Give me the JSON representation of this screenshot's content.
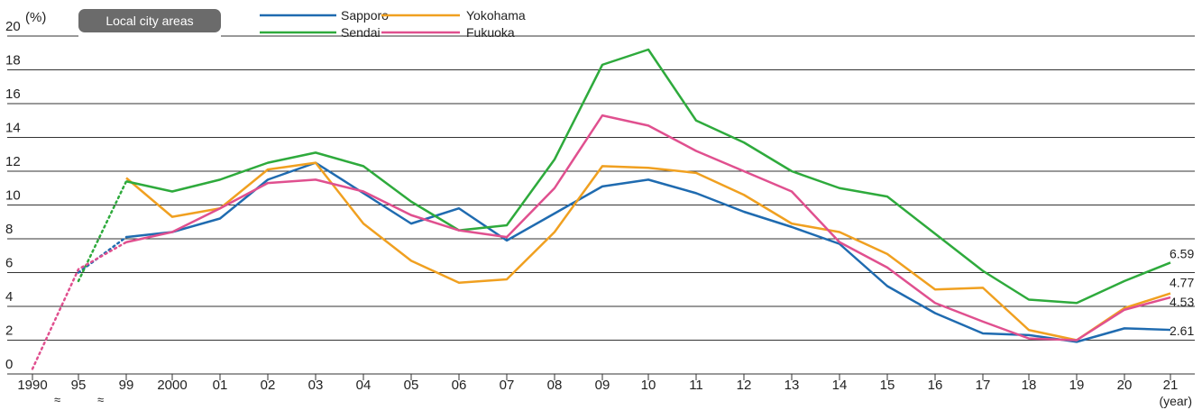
{
  "chart_data": {
    "type": "line",
    "badge": "Local city areas",
    "yunit": "(%)",
    "xunit": "(year)",
    "ylim": [
      0,
      20
    ],
    "yticks": [
      0,
      2,
      4,
      6,
      8,
      10,
      12,
      14,
      16,
      18,
      20
    ],
    "grid": true,
    "legend_position": "top",
    "categories": [
      "1990",
      "95",
      "99",
      "2000",
      "01",
      "02",
      "03",
      "04",
      "05",
      "06",
      "07",
      "08",
      "09",
      "10",
      "11",
      "12",
      "13",
      "14",
      "15",
      "16",
      "17",
      "18",
      "19",
      "20",
      "21"
    ],
    "series": [
      {
        "name": "Sapporo",
        "color": "#1f6bb0",
        "values": [
          null,
          6.0,
          8.1,
          8.4,
          9.2,
          11.5,
          12.5,
          10.7,
          8.9,
          9.8,
          7.9,
          9.5,
          11.1,
          11.5,
          10.7,
          9.6,
          8.7,
          7.7,
          5.2,
          3.6,
          2.4,
          2.3,
          1.9,
          2.7,
          2.61
        ],
        "dotted_until": 2
      },
      {
        "name": "Yokohama",
        "color": "#f0a020",
        "values": [
          null,
          null,
          11.6,
          9.3,
          9.8,
          12.1,
          12.5,
          8.9,
          6.7,
          5.4,
          5.6,
          8.4,
          12.3,
          12.2,
          11.9,
          10.6,
          8.9,
          8.4,
          7.1,
          5.0,
          5.1,
          2.6,
          2.0,
          3.9,
          4.77
        ],
        "dotted_until": -1
      },
      {
        "name": "Sendai",
        "color": "#2eaa3c",
        "values": [
          null,
          5.5,
          11.4,
          10.8,
          11.5,
          12.5,
          13.1,
          12.3,
          10.2,
          8.5,
          8.8,
          12.7,
          18.3,
          19.2,
          15.0,
          13.7,
          12.0,
          11.0,
          10.5,
          8.3,
          6.1,
          4.4,
          4.2,
          5.5,
          6.59
        ],
        "dotted_until": 2
      },
      {
        "name": "Fukuoka",
        "color": "#e0508f",
        "values": [
          0.3,
          6.2,
          7.8,
          8.4,
          9.8,
          11.3,
          11.5,
          10.8,
          9.4,
          8.5,
          8.1,
          11.0,
          15.3,
          14.7,
          13.2,
          12.0,
          10.8,
          7.8,
          6.3,
          4.2,
          3.1,
          2.1,
          2.0,
          3.8,
          4.53
        ],
        "dotted_until": 2
      }
    ],
    "end_labels": [
      {
        "series": "Sendai",
        "text": "6.59"
      },
      {
        "series": "Yokohama",
        "text": "4.77"
      },
      {
        "series": "Fukuoka",
        "text": "4.53"
      },
      {
        "series": "Sapporo",
        "text": "2.61"
      }
    ]
  }
}
